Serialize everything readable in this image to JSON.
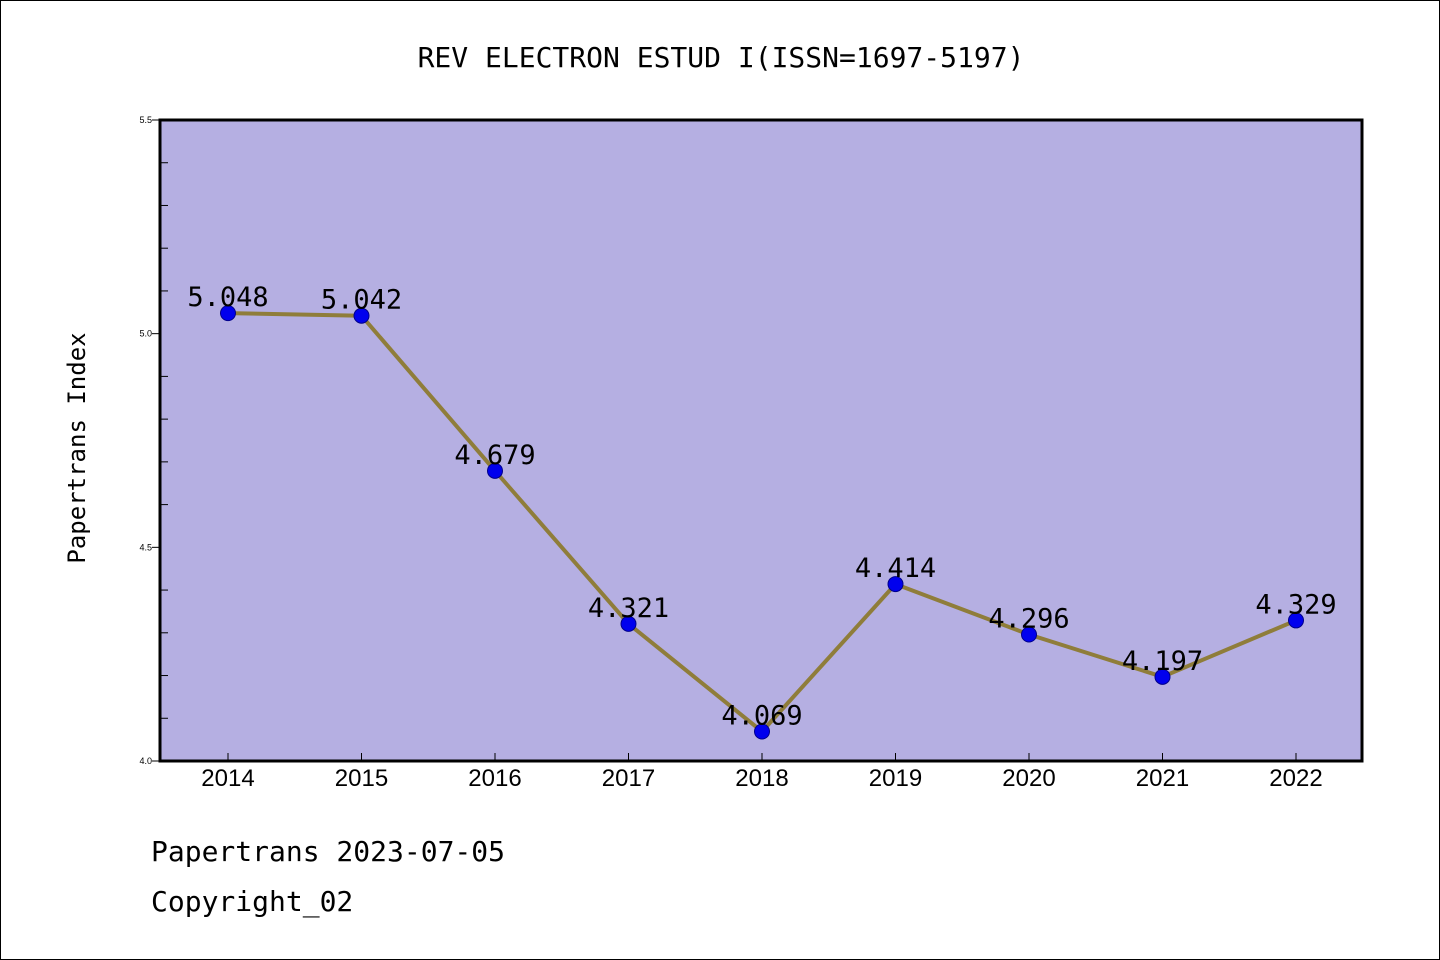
{
  "chart_data": {
    "type": "line",
    "title": "REV ELECTRON ESTUD I(ISSN=1697-5197)",
    "xlabel": "",
    "ylabel": "Papertrans Index",
    "categories": [
      "2014",
      "2015",
      "2016",
      "2017",
      "2018",
      "2019",
      "2020",
      "2021",
      "2022"
    ],
    "values": [
      5.048,
      5.042,
      4.679,
      4.321,
      4.069,
      4.414,
      4.296,
      4.197,
      4.329
    ],
    "value_labels": [
      "5.048",
      "5.042",
      "4.679",
      "4.321",
      "4.069",
      "4.414",
      "4.296",
      "4.197",
      "4.329"
    ],
    "ylim": [
      4.0,
      5.5
    ],
    "yticks": [
      "4.0",
      "4.5",
      "5.0",
      "5.5"
    ],
    "grid": false,
    "legend": "none",
    "colors": {
      "plot_background": "#b5afe2",
      "line": "#8f7d3a",
      "marker": "#0000ee",
      "marker_edge": "#00008b"
    }
  },
  "footer": {
    "line1": "Papertrans 2023-07-05",
    "line2": "Copyright_02"
  }
}
